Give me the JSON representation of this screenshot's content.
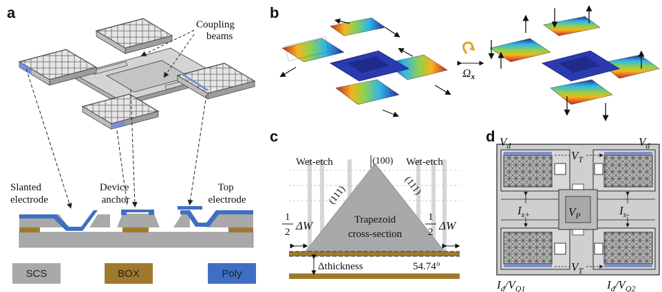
{
  "panels": {
    "a": {
      "label": "a",
      "coupling_beams": "Coupling\nbeams",
      "slanted_electrode": "Slanted\nelectrode",
      "device_anchor": "Device\nanchor",
      "top_electrode": "Top\nelectrode",
      "legend": [
        {
          "label": "SCS",
          "color": "#a9a9a9"
        },
        {
          "label": "BOX",
          "color": "#a07a2c"
        },
        {
          "label": "Poly",
          "color": "#3f6fc2"
        }
      ]
    },
    "b": {
      "label": "b",
      "omega": "Ω",
      "omega_sub": "x"
    },
    "c": {
      "label": "c",
      "wet_etch_left": "Wet-etch",
      "wet_etch_right": "Wet-etch",
      "orientation_100": "(100)",
      "orientation_111_left": "(111)",
      "orientation_111_right": "(111)",
      "half_num": "1",
      "half_den": "2",
      "delta_w": "ΔW",
      "trapezoid": "Trapezoid",
      "cross_section": "cross-section",
      "delta_thickness": "Δthickness",
      "angle": "54.74°"
    },
    "d": {
      "label": "d",
      "vd_left": "V",
      "vd_right": "V",
      "vd_sub": "d",
      "vt_top": "V",
      "vt_bottom": "V",
      "vt_sub": "T",
      "is_plus": "I",
      "is_plus_sub": "s+",
      "is_minus": "I",
      "is_minus_sub": "s-",
      "vp": "V",
      "vp_sub": "P",
      "id_vq1_i": "I",
      "id_vq1_isub": "d",
      "id_vq1_v": "/V",
      "id_vq1_vsub": "Q1",
      "id_vq2_i": "I",
      "id_vq2_isub": "d",
      "id_vq2_v": "/V",
      "id_vq2_vsub": "Q2"
    }
  },
  "colors": {
    "scs": "#a9a9a9",
    "box": "#a07a2c",
    "poly": "#3f6fc2"
  }
}
